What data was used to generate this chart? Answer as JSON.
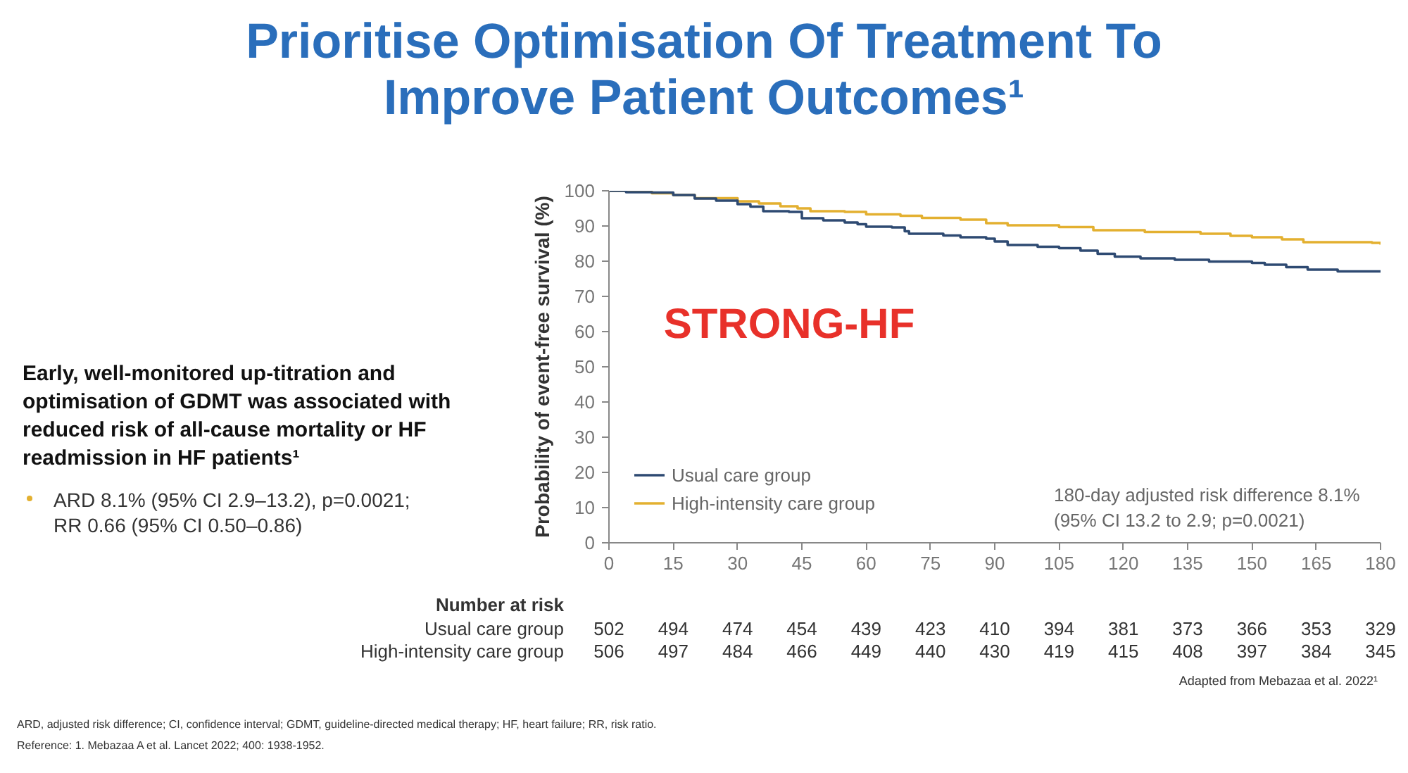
{
  "chart_data": {
    "type": "step",
    "title": "Prioritise Optimisation Of Treatment To Improve Patient Outcomes¹",
    "ylabel": "Probability of event-free survival (%)",
    "xlim": [
      0,
      180
    ],
    "xticks": [
      0,
      15,
      30,
      45,
      60,
      75,
      90,
      105,
      120,
      135,
      150,
      165,
      180
    ],
    "ylim": [
      0,
      100
    ],
    "yticks": [
      0,
      10,
      20,
      30,
      40,
      50,
      60,
      70,
      80,
      90,
      100
    ],
    "grid": false,
    "legend": "bottom left",
    "marker": "none",
    "line_style": "solid",
    "series": [
      {
        "name": "Usual care group",
        "color": "#2e4a72",
        "x": [
          0,
          4,
          10,
          15,
          20,
          25,
          30,
          33,
          36,
          42,
          45,
          50,
          55,
          58,
          60,
          66,
          69,
          70,
          78,
          82,
          88,
          90,
          93,
          100,
          105,
          110,
          114,
          118,
          124,
          132,
          140,
          150,
          153,
          158,
          163,
          170,
          180
        ],
        "values": [
          100,
          99.6,
          99.5,
          98.8,
          97.8,
          97.2,
          96.2,
          95.5,
          94.2,
          94,
          92.2,
          91.6,
          91,
          90.5,
          89.8,
          89.6,
          88.5,
          87.8,
          87.3,
          86.8,
          86.4,
          85.6,
          84.6,
          84.1,
          83.7,
          83,
          82.1,
          81.3,
          80.8,
          80.4,
          79.9,
          79.5,
          79,
          78.3,
          77.6,
          77.1,
          77
        ]
      },
      {
        "name": "High-intensity care group",
        "color": "#e3b030",
        "x": [
          0,
          10,
          15,
          20,
          30,
          35,
          40,
          44,
          47,
          55,
          60,
          68,
          73,
          82,
          88,
          93,
          105,
          113,
          125,
          138,
          145,
          150,
          157,
          162,
          178,
          180
        ],
        "values": [
          100,
          99.3,
          98.8,
          97.9,
          97,
          96.4,
          95.6,
          95,
          94.2,
          94,
          93.3,
          92.9,
          92.3,
          91.8,
          90.8,
          90.2,
          89.7,
          88.8,
          88.3,
          87.8,
          87.2,
          86.8,
          86.2,
          85.4,
          85.2,
          84.7
        ]
      }
    ],
    "annotations": [
      "STRONG-HF",
      "180-day adjusted risk difference 8.1%\n(95% CI 13.2 to 2.9; p=0.0021)",
      "Early, well-monitored up-titration and optimisation of GDMT was associated with reduced risk of all-cause mortality or HF readmission in HF patients¹",
      "ARD 8.1% (95% CI 2.9–13.2), p=0.0021; RR 0.66 (95% CI 0.50–0.86)",
      "Number at risk",
      "Usual care group",
      "502",
      "494",
      "474",
      "454",
      "439",
      "423",
      "410",
      "394",
      "381",
      "373",
      "366",
      "353",
      "329",
      "High-intensity care group",
      "506",
      "497",
      "484",
      "466",
      "449",
      "440",
      "430",
      "419",
      "415",
      "408",
      "397",
      "384",
      "345",
      "Adapted from Mebazaa et al. 2022¹",
      "ARD, adjusted risk difference; CI, confidence interval; GDMT, guideline-directed medical therapy; HF, heart failure; RR, risk ratio.",
      "Reference: 1. Mebazaa A et al. Lancet 2022; 400: 1938-1952."
    ]
  }
}
